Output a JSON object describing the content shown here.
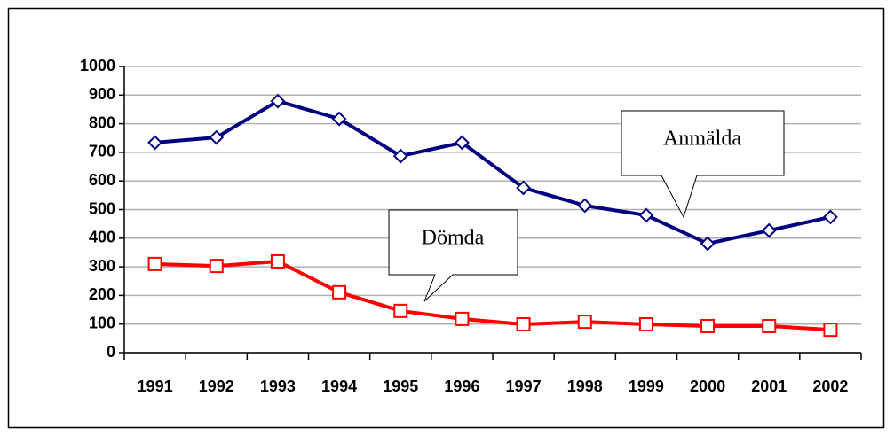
{
  "chart_data": {
    "type": "line",
    "categories": [
      "1991",
      "1992",
      "1993",
      "1994",
      "1995",
      "1996",
      "1997",
      "1998",
      "1999",
      "2000",
      "2001",
      "2002"
    ],
    "series": [
      {
        "name": "Anmälda",
        "color": "#000080",
        "marker": "diamond",
        "values": [
          734,
          752,
          879,
          817,
          687,
          734,
          576,
          514,
          480,
          381,
          427,
          474
        ]
      },
      {
        "name": "Dömda",
        "color": "#ff0000",
        "marker": "square",
        "values": [
          310,
          303,
          319,
          211,
          146,
          118,
          99,
          108,
          99,
          93,
          93,
          80
        ]
      }
    ],
    "ylim": [
      0,
      1000
    ],
    "yticks": [
      0,
      100,
      200,
      300,
      400,
      500,
      600,
      700,
      800,
      900,
      1000
    ],
    "grid": true
  }
}
